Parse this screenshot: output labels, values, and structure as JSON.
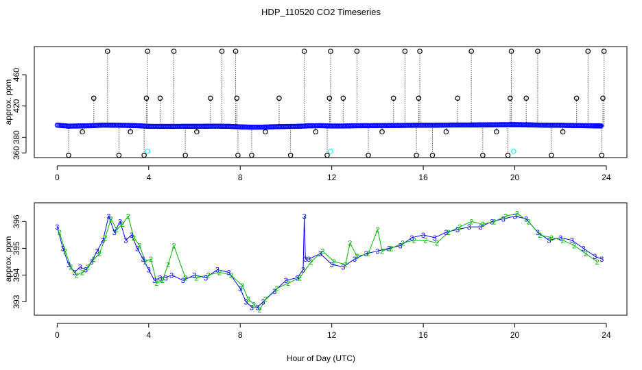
{
  "chart_data": [
    {
      "type": "scatter",
      "title": "HDP_110520  CO2 Timeseries",
      "ylabel": "approx. ppm",
      "xlabel": "",
      "xlim": [
        -1,
        24.9
      ],
      "ylim": [
        354,
        496
      ],
      "xticks": [
        0,
        4,
        8,
        12,
        16,
        20,
        24
      ],
      "xtick_labels": [
        "0",
        "4",
        "8",
        "12",
        "16",
        "20",
        "24"
      ],
      "yticks": [
        360,
        380,
        420,
        460
      ],
      "ytick_labels": [
        "360",
        "380",
        "420",
        "460"
      ],
      "grid": false,
      "colors": {
        "main": "#0000ff",
        "outlier": "#000000",
        "low": "#00ffff",
        "drop_line": "#000000"
      },
      "series": [
        {
          "marker": "open-circle-blue",
          "x": [
            0.0,
            0.5,
            1.0,
            1.5,
            2.0,
            2.5,
            3.0,
            3.5,
            4.0,
            4.5,
            5.0,
            5.5,
            6.0,
            6.5,
            7.0,
            7.5,
            8.0,
            8.5,
            9.0,
            9.5,
            10.0,
            10.5,
            11.0,
            11.5,
            12.0,
            12.5,
            13.0,
            13.5,
            14.0,
            14.5,
            15.0,
            15.5,
            16.0,
            16.5,
            17.0,
            17.5,
            18.0,
            18.5,
            19.0,
            19.5,
            20.0,
            20.5,
            21.0,
            21.5,
            22.0,
            22.5,
            23.0,
            23.5,
            23.8
          ],
          "y": [
            395.5,
            394.2,
            394.5,
            394.8,
            395.6,
            395.4,
            395.2,
            394.8,
            394.0,
            393.9,
            393.9,
            394.0,
            394.0,
            394.1,
            394.2,
            394.0,
            393.3,
            392.9,
            393.0,
            393.5,
            393.8,
            394.0,
            394.6,
            394.8,
            394.4,
            394.4,
            394.7,
            394.8,
            394.9,
            395.0,
            395.1,
            395.3,
            395.4,
            395.4,
            395.6,
            395.7,
            395.7,
            395.9,
            396.0,
            396.1,
            396.2,
            396.0,
            395.6,
            395.4,
            395.3,
            395.0,
            394.8,
            394.6,
            394.5
          ]
        },
        {
          "marker": "open-circle-black-with-drop-line",
          "x": [
            0.5,
            1.1,
            1.6,
            2.2,
            2.7,
            3.2,
            3.8,
            3.9,
            3.95,
            4.5,
            5.1,
            5.6,
            6.1,
            6.7,
            7.2,
            7.8,
            7.85,
            7.9,
            8.5,
            9.1,
            9.7,
            10.2,
            10.8,
            11.3,
            11.8,
            11.9,
            11.95,
            12.5,
            13.1,
            13.6,
            14.2,
            14.7,
            15.2,
            15.7,
            15.8,
            15.85,
            16.4,
            17.0,
            17.5,
            18.1,
            18.6,
            19.2,
            19.7,
            19.8,
            19.85,
            20.5,
            21.0,
            21.6,
            22.1,
            22.7,
            23.2,
            23.8,
            23.85,
            23.9
          ],
          "y": [
            357,
            387,
            430,
            490,
            357,
            387,
            357,
            430,
            490,
            430,
            490,
            357,
            387,
            430,
            490,
            490,
            430,
            357,
            357,
            387,
            430,
            357,
            490,
            387,
            357,
            430,
            490,
            430,
            490,
            357,
            387,
            430,
            490,
            357,
            430,
            490,
            357,
            387,
            430,
            490,
            357,
            387,
            357,
            430,
            490,
            430,
            490,
            357,
            387,
            430,
            490,
            357,
            430,
            490
          ]
        },
        {
          "marker": "open-circle-cyan",
          "x": [
            3.95,
            11.95,
            19.95
          ],
          "y": [
            362,
            362,
            362
          ]
        }
      ]
    },
    {
      "type": "scatter",
      "title": "",
      "ylabel": "approx. ppm",
      "xlabel": "Hour of Day (UTC)",
      "xlim": [
        -1,
        24.9
      ],
      "ylim": [
        392.5,
        396.7
      ],
      "xticks": [
        0,
        4,
        8,
        12,
        16,
        20,
        24
      ],
      "xtick_labels": [
        "0",
        "4",
        "8",
        "12",
        "16",
        "20",
        "24"
      ],
      "yticks": [
        393,
        394,
        395,
        396
      ],
      "ytick_labels": [
        "393",
        "394",
        "395",
        "396"
      ],
      "grid": false,
      "colors": {
        "series_3": "#0000ff",
        "series_2": "#00b300"
      },
      "series": [
        {
          "label": "3",
          "x": [
            0.0,
            0.25,
            0.5,
            0.75,
            1.0,
            1.25,
            1.5,
            1.75,
            2.0,
            2.25,
            2.5,
            2.75,
            3.0,
            3.25,
            3.5,
            3.75,
            4.0,
            4.25,
            4.5,
            4.75,
            5.0,
            5.5,
            6.0,
            6.5,
            7.0,
            7.5,
            8.0,
            8.25,
            8.5,
            8.75,
            9.0,
            9.5,
            10.0,
            10.5,
            10.75,
            10.8,
            10.85,
            11.0,
            11.5,
            12.0,
            12.5,
            13.0,
            13.5,
            14.0,
            14.5,
            15.0,
            15.5,
            16.0,
            16.5,
            17.0,
            17.5,
            18.0,
            18.5,
            19.0,
            19.5,
            20.0,
            20.5,
            21.0,
            21.5,
            22.0,
            22.5,
            23.0,
            23.5,
            23.8
          ],
          "y": [
            395.8,
            395.0,
            394.4,
            394.1,
            394.3,
            394.2,
            394.5,
            394.9,
            395.3,
            396.2,
            395.6,
            396.0,
            395.3,
            395.5,
            395.0,
            394.6,
            394.2,
            393.8,
            393.9,
            393.9,
            394.0,
            393.8,
            394.0,
            393.9,
            394.2,
            394.1,
            393.5,
            393.0,
            392.8,
            392.8,
            393.0,
            393.4,
            393.8,
            393.9,
            394.2,
            396.2,
            394.6,
            394.6,
            394.8,
            394.4,
            394.3,
            394.6,
            394.8,
            394.9,
            395.0,
            395.1,
            395.4,
            395.5,
            395.4,
            395.6,
            395.7,
            395.8,
            395.8,
            396.0,
            396.1,
            396.2,
            396.1,
            395.6,
            395.3,
            395.4,
            395.3,
            395.0,
            394.7,
            394.6
          ]
        },
        {
          "label": "2",
          "x": [
            0.1,
            0.35,
            0.6,
            0.85,
            1.1,
            1.35,
            1.6,
            1.85,
            2.1,
            2.35,
            2.6,
            2.85,
            3.1,
            3.35,
            3.6,
            3.85,
            4.1,
            4.35,
            4.6,
            4.85,
            5.1,
            5.6,
            6.1,
            6.6,
            7.1,
            7.6,
            8.1,
            8.35,
            8.6,
            8.85,
            9.1,
            9.6,
            10.1,
            10.6,
            11.1,
            11.6,
            12.1,
            12.6,
            12.8,
            13.1,
            13.6,
            14.0,
            14.2,
            14.6,
            15.1,
            15.6,
            16.1,
            16.6,
            17.1,
            17.6,
            18.1,
            18.6,
            19.1,
            19.6,
            20.1,
            20.6,
            21.1,
            21.6,
            22.1,
            22.6,
            23.1,
            23.6
          ],
          "y": [
            395.6,
            394.9,
            394.3,
            394.0,
            394.1,
            394.3,
            394.6,
            394.8,
            395.4,
            396.1,
            395.7,
            395.9,
            396.2,
            395.4,
            395.1,
            394.5,
            394.6,
            393.7,
            393.8,
            394.4,
            395.1,
            393.9,
            393.9,
            394.0,
            394.1,
            394.0,
            393.6,
            393.1,
            392.9,
            392.7,
            393.1,
            393.5,
            393.7,
            393.9,
            394.5,
            394.9,
            394.5,
            394.4,
            395.2,
            394.7,
            394.8,
            395.7,
            394.9,
            395.0,
            395.2,
            395.3,
            395.3,
            395.2,
            395.6,
            395.8,
            396.0,
            395.9,
            396.0,
            396.2,
            396.3,
            396.0,
            395.5,
            395.4,
            395.3,
            395.1,
            394.8,
            394.5
          ]
        }
      ]
    }
  ]
}
